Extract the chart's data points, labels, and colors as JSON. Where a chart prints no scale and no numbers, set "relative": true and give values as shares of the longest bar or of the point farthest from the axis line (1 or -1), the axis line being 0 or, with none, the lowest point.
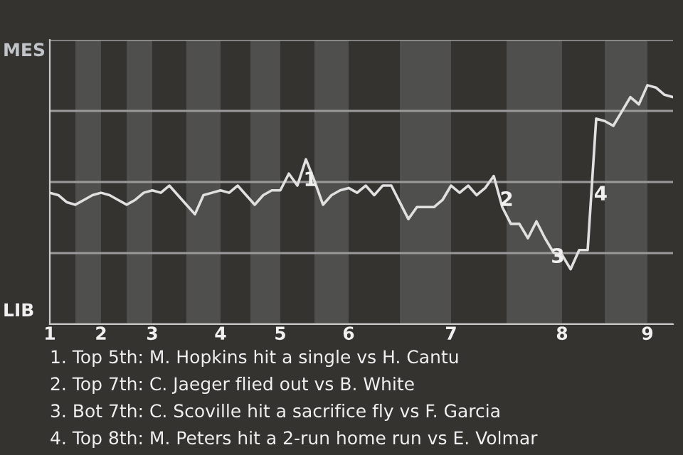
{
  "chart_data": {
    "type": "line",
    "relative": true,
    "categories": [
      "1",
      null,
      null,
      null,
      null,
      null,
      "2",
      null,
      null,
      null,
      null,
      null,
      "3",
      null,
      null,
      null,
      null,
      null,
      null,
      null,
      "4",
      null,
      null,
      null,
      null,
      null,
      null,
      "5",
      null,
      null,
      null,
      null,
      null,
      null,
      null,
      "6",
      null,
      null,
      null,
      null,
      null,
      null,
      null,
      null,
      null,
      null,
      null,
      "7",
      null,
      null,
      null,
      null,
      null,
      null,
      null,
      null,
      null,
      null,
      null,
      null,
      "8",
      null,
      null,
      null,
      null,
      null,
      null,
      null,
      null,
      null,
      "9",
      null,
      null,
      null
    ],
    "series": [
      {
        "color": "#e0e0e0",
        "values": [
          0.55,
          0.54,
          0.51,
          0.5,
          0.52,
          0.54,
          0.55,
          0.54,
          0.52,
          0.5,
          0.52,
          0.55,
          0.56,
          0.55,
          0.58,
          0.54,
          0.5,
          0.46,
          0.54,
          0.55,
          0.56,
          0.55,
          0.58,
          0.54,
          0.5,
          0.54,
          0.56,
          0.56,
          0.63,
          0.58,
          0.69,
          0.6,
          0.5,
          0.54,
          0.56,
          0.57,
          0.55,
          0.58,
          0.54,
          0.58,
          0.58,
          0.51,
          0.44,
          0.49,
          0.49,
          0.49,
          0.52,
          0.58,
          0.55,
          0.58,
          0.54,
          0.57,
          0.62,
          0.49,
          0.42,
          0.42,
          0.36,
          0.43,
          0.36,
          0.3,
          0.29,
          0.23,
          0.31,
          0.31,
          0.86,
          0.85,
          0.83,
          0.89,
          0.95,
          0.92,
          1,
          0.99,
          0.96,
          0.95
        ]
      }
    ],
    "ylim": [
      0,
      1.19
    ],
    "grid": "y",
    "annotations": [
      "MES",
      "LIB",
      "1",
      "2",
      "3",
      "4",
      "1. Top 5th: M. Hopkins hit a single vs H. Cantu",
      "2. Top 7th: C. Jaeger flied out vs B. White",
      "3. Bot 7th: C. Scoville hit a sacrifice fly vs F. Garcia",
      "4. Top 8th: M. Peters hit a 2-run home run vs E. Volmar"
    ]
  }
}
